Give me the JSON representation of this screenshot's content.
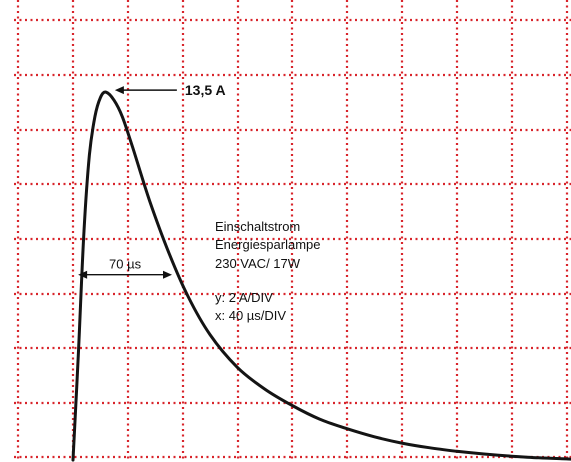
{
  "chart_data": {
    "type": "line",
    "title": "",
    "xlabel": "",
    "ylabel": "",
    "x_unit": "µs",
    "y_unit": "A",
    "grid": true,
    "grid_color": "#d8242b",
    "trace_color": "#141414",
    "x_per_div": 40,
    "y_per_div": 2,
    "xlim": [
      -20,
      380
    ],
    "ylim": [
      0,
      14.9
    ],
    "series": [
      {
        "points": [
          [
            0,
            0
          ],
          [
            4,
            4.0
          ],
          [
            8,
            8.4
          ],
          [
            12,
            11.2
          ],
          [
            16,
            12.6
          ],
          [
            20,
            13.3
          ],
          [
            24,
            13.5
          ],
          [
            30,
            13.2
          ],
          [
            36,
            12.6
          ],
          [
            44,
            11.4
          ],
          [
            56,
            9.5
          ],
          [
            70,
            7.6
          ],
          [
            84,
            6.0
          ],
          [
            100,
            4.6
          ],
          [
            120,
            3.4
          ],
          [
            140,
            2.6
          ],
          [
            160,
            2.0
          ],
          [
            180,
            1.5
          ],
          [
            200,
            1.15
          ],
          [
            220,
            0.85
          ],
          [
            240,
            0.62
          ],
          [
            260,
            0.45
          ],
          [
            280,
            0.32
          ],
          [
            300,
            0.22
          ],
          [
            320,
            0.14
          ],
          [
            340,
            0.08
          ],
          [
            360,
            0.04
          ],
          [
            375,
            0.02
          ]
        ]
      }
    ],
    "annotations": {
      "peak_label": "13,5 A",
      "peak_point": [
        24,
        13.5
      ],
      "width_label": "70 µs",
      "width_at_y": 6.8,
      "width_start_x": 3,
      "width_end_x": 73,
      "info_lines": [
        "Einschaltstrom",
        "Energiesparlampe",
        "230 VAC/ 17W"
      ],
      "scale_lines": [
        "y: 2 A/DIV",
        "x: 40 µs/DIV"
      ]
    }
  }
}
